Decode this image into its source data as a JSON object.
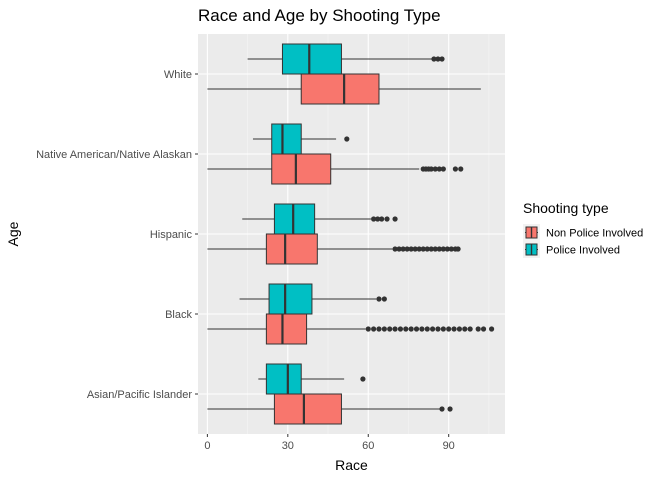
{
  "chart_data": {
    "type": "boxplot",
    "title": "Race and Age by Shooting Type",
    "xlabel": "Race",
    "ylabel": "Age",
    "orientation": "horizontal",
    "xlim": [
      -3.5,
      111
    ],
    "x_ticks": [
      0,
      30,
      60,
      90
    ],
    "grid": true,
    "legend": {
      "title": "Shooting type",
      "position": "right"
    },
    "categories": [
      "Asian/Pacific Islander",
      "Black",
      "Hispanic",
      "Native American/Native Alaskan",
      "White"
    ],
    "series": [
      {
        "name": "Non Police Involved",
        "color": "#F8766D",
        "boxes": [
          {
            "category": "Asian/Pacific Islander",
            "min": 0,
            "q1": 25,
            "median": 36,
            "q3": 50,
            "max": 87,
            "outliers": [
              87.5,
              90.5
            ]
          },
          {
            "category": "Black",
            "min": 0,
            "q1": 22,
            "median": 28,
            "q3": 37,
            "max": 59,
            "outliers": [
              60,
              62,
              64,
              66,
              68,
              70,
              72,
              74,
              76,
              78,
              80,
              82,
              84,
              86,
              88,
              90,
              92,
              94,
              96,
              98,
              101,
              103,
              106
            ]
          },
          {
            "category": "Hispanic",
            "min": 0,
            "q1": 22,
            "median": 29,
            "q3": 41,
            "max": 69,
            "outliers": [
              70,
              71.5,
              73,
              74.5,
              76,
              77.5,
              79,
              80.5,
              82,
              83.5,
              85,
              86.5,
              88,
              89.5,
              91,
              92.5,
              93.5
            ]
          },
          {
            "category": "Native American/Native Alaskan",
            "min": 0,
            "q1": 24,
            "median": 33,
            "q3": 46,
            "max": 79,
            "outliers": [
              80.5,
              81.5,
              82.5,
              83.5,
              85,
              86.5,
              88,
              92.5,
              94.5
            ]
          },
          {
            "category": "White",
            "min": 0,
            "q1": 35,
            "median": 51,
            "q3": 64,
            "max": 102,
            "outliers": []
          }
        ]
      },
      {
        "name": "Police Involved",
        "color": "#00BFC4",
        "boxes": [
          {
            "category": "Asian/Pacific Islander",
            "min": 19,
            "q1": 22,
            "median": 30,
            "q3": 35,
            "max": 51,
            "outliers": [
              58
            ]
          },
          {
            "category": "Black",
            "min": 12,
            "q1": 23,
            "median": 29,
            "q3": 39,
            "max": 63,
            "outliers": [
              64,
              66
            ]
          },
          {
            "category": "Hispanic",
            "min": 13,
            "q1": 25,
            "median": 32,
            "q3": 40,
            "max": 61,
            "outliers": [
              62,
              63.5,
              65,
              67,
              70
            ]
          },
          {
            "category": "Native American/Native Alaskan",
            "min": 17,
            "q1": 24,
            "median": 28,
            "q3": 35,
            "max": 48,
            "outliers": [
              52
            ]
          },
          {
            "category": "White",
            "min": 15,
            "q1": 28,
            "median": 38,
            "q3": 50,
            "max": 84,
            "outliers": [
              84.5,
              86,
              87.5
            ]
          }
        ]
      }
    ]
  }
}
